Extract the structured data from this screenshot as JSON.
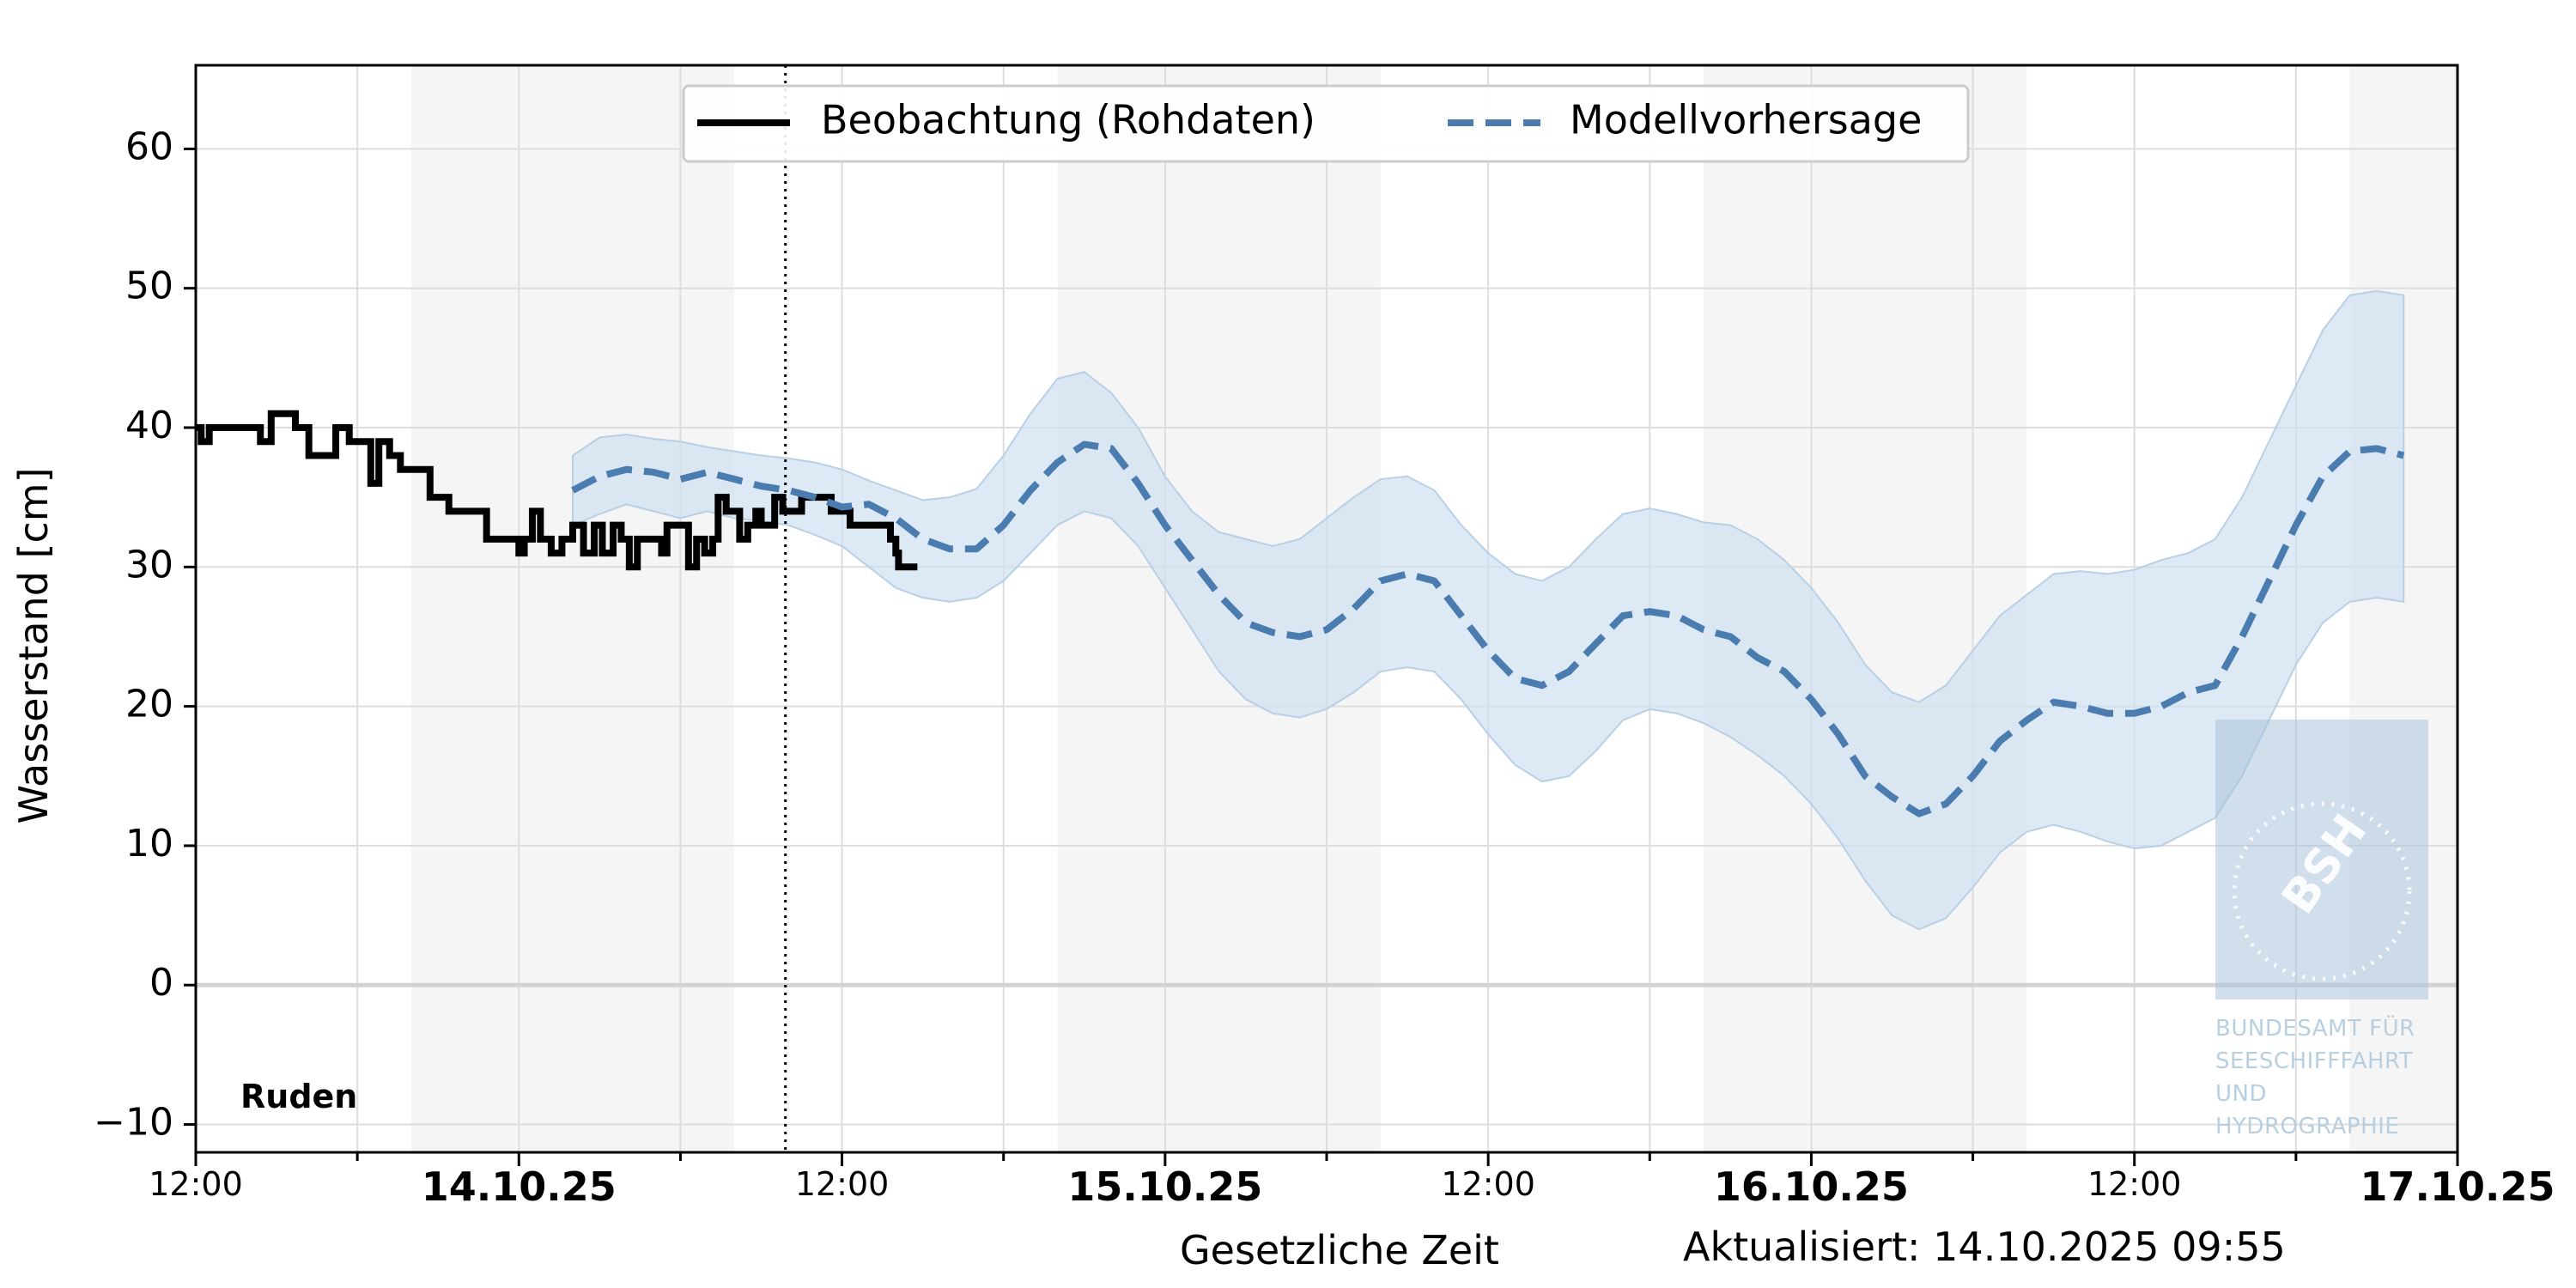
{
  "chart_data": {
    "type": "line",
    "station": "Ruden",
    "ylabel": "Wasserstand [cm]",
    "xlabel": "Gesetzliche Zeit",
    "updated": "Aktualisiert: 14.10.2025 09:55",
    "ylim": [
      -12,
      66
    ],
    "yticks": [
      -10,
      0,
      10,
      20,
      30,
      40,
      50,
      60
    ],
    "x_range_hours": [
      -12,
      72
    ],
    "x_origin": "14.10.25 00:00",
    "xticks_minor": [
      {
        "h": -12,
        "label": "12:00"
      },
      {
        "h": 12,
        "label": "12:00"
      },
      {
        "h": 36,
        "label": "12:00"
      },
      {
        "h": 60,
        "label": "12:00"
      }
    ],
    "xticks_major": [
      {
        "h": 0,
        "label": "14.10.25"
      },
      {
        "h": 24,
        "label": "15.10.25"
      },
      {
        "h": 48,
        "label": "16.10.25"
      },
      {
        "h": 72,
        "label": "17.10.25"
      }
    ],
    "night_bands_hours": [
      [
        -4,
        8
      ],
      [
        20,
        32
      ],
      [
        44,
        56
      ],
      [
        68,
        72
      ]
    ],
    "now_hours": 9.9,
    "grid": true,
    "legend_position": "top-center",
    "series": [
      {
        "name": "Beobachtung (Rohdaten)",
        "color": "#000000",
        "style": "solid-step",
        "points": [
          [
            -12,
            40
          ],
          [
            -11.8,
            39
          ],
          [
            -11.5,
            40
          ],
          [
            -10,
            40
          ],
          [
            -9.6,
            39
          ],
          [
            -9.2,
            41
          ],
          [
            -8.6,
            41
          ],
          [
            -8.3,
            40
          ],
          [
            -7.8,
            38
          ],
          [
            -7.2,
            38
          ],
          [
            -6.8,
            40
          ],
          [
            -6.3,
            39
          ],
          [
            -5.8,
            39
          ],
          [
            -5.5,
            36
          ],
          [
            -5.2,
            39
          ],
          [
            -4.8,
            38
          ],
          [
            -4.4,
            37
          ],
          [
            -3.6,
            37
          ],
          [
            -3.3,
            35
          ],
          [
            -2.6,
            34
          ],
          [
            -1.5,
            34
          ],
          [
            -1.2,
            32
          ],
          [
            -0.3,
            32
          ],
          [
            0,
            31
          ],
          [
            0.2,
            32
          ],
          [
            0.5,
            34
          ],
          [
            0.8,
            32
          ],
          [
            1.2,
            31
          ],
          [
            1.6,
            32
          ],
          [
            2,
            33
          ],
          [
            2.4,
            31
          ],
          [
            2.8,
            33
          ],
          [
            3.1,
            31
          ],
          [
            3.5,
            33
          ],
          [
            3.8,
            32
          ],
          [
            4.1,
            30
          ],
          [
            4.4,
            32
          ],
          [
            5,
            32
          ],
          [
            5.3,
            31
          ],
          [
            5.5,
            33
          ],
          [
            6.1,
            33
          ],
          [
            6.3,
            30
          ],
          [
            6.6,
            32
          ],
          [
            6.9,
            31
          ],
          [
            7.2,
            32
          ],
          [
            7.4,
            35
          ],
          [
            7.7,
            34
          ],
          [
            8.1,
            34
          ],
          [
            8.2,
            32
          ],
          [
            8.5,
            33
          ],
          [
            8.8,
            34
          ],
          [
            9,
            33
          ],
          [
            9.5,
            35
          ],
          [
            9.8,
            34
          ],
          [
            10.2,
            34
          ],
          [
            10.5,
            35
          ],
          [
            11.2,
            35
          ],
          [
            11.6,
            34
          ],
          [
            12.3,
            33
          ],
          [
            13.6,
            33
          ],
          [
            13.8,
            32
          ],
          [
            14,
            31
          ],
          [
            14.1,
            30
          ],
          [
            14.8,
            30
          ]
        ]
      },
      {
        "name": "Modellvorhersage",
        "color": "#4a7cb0",
        "style": "dashed",
        "band_color": "#cfe0ef",
        "points": [
          [
            2,
            35.5
          ],
          [
            3,
            36.5
          ],
          [
            4,
            37
          ],
          [
            5,
            36.8
          ],
          [
            6,
            36.3
          ],
          [
            7,
            36.8
          ],
          [
            8,
            36.3
          ],
          [
            9,
            35.8
          ],
          [
            10,
            35.5
          ],
          [
            11,
            35
          ],
          [
            12,
            34.3
          ],
          [
            13,
            34.5
          ],
          [
            14,
            33.5
          ],
          [
            15,
            32
          ],
          [
            16,
            31.3
          ],
          [
            17,
            31.3
          ],
          [
            18,
            33
          ],
          [
            19,
            35.5
          ],
          [
            20,
            37.5
          ],
          [
            21,
            38.8
          ],
          [
            22,
            38.5
          ],
          [
            23,
            36
          ],
          [
            24,
            33
          ],
          [
            25,
            30.5
          ],
          [
            26,
            28
          ],
          [
            27,
            26
          ],
          [
            28,
            25.3
          ],
          [
            29,
            25
          ],
          [
            30,
            25.5
          ],
          [
            31,
            27
          ],
          [
            32,
            29
          ],
          [
            33,
            29.5
          ],
          [
            34,
            29
          ],
          [
            35,
            26.5
          ],
          [
            36,
            24
          ],
          [
            37,
            22
          ],
          [
            38,
            21.5
          ],
          [
            39,
            22.5
          ],
          [
            40,
            24.5
          ],
          [
            41,
            26.5
          ],
          [
            42,
            26.8
          ],
          [
            43,
            26.5
          ],
          [
            44,
            25.5
          ],
          [
            45,
            25
          ],
          [
            46,
            23.5
          ],
          [
            47,
            22.5
          ],
          [
            48,
            20.5
          ],
          [
            49,
            18
          ],
          [
            50,
            15
          ],
          [
            51,
            13.5
          ],
          [
            52,
            12.3
          ],
          [
            53,
            13
          ],
          [
            54,
            15
          ],
          [
            55,
            17.5
          ],
          [
            56,
            19
          ],
          [
            57,
            20.3
          ],
          [
            58,
            20
          ],
          [
            59,
            19.5
          ],
          [
            60,
            19.5
          ],
          [
            61,
            20
          ],
          [
            62,
            21
          ],
          [
            63,
            21.5
          ],
          [
            64,
            25
          ],
          [
            65,
            29
          ],
          [
            66,
            33
          ],
          [
            67,
            36.5
          ],
          [
            68,
            38.3
          ],
          [
            69,
            38.5
          ],
          [
            70,
            38
          ]
        ],
        "band_upper": [
          [
            2,
            38
          ],
          [
            3,
            39.3
          ],
          [
            4,
            39.5
          ],
          [
            5,
            39.2
          ],
          [
            6,
            39
          ],
          [
            7,
            38.6
          ],
          [
            8,
            38.3
          ],
          [
            9,
            38
          ],
          [
            10,
            37.8
          ],
          [
            11,
            37.5
          ],
          [
            12,
            37
          ],
          [
            13,
            36.2
          ],
          [
            14,
            35.5
          ],
          [
            15,
            34.8
          ],
          [
            16,
            35
          ],
          [
            17,
            35.6
          ],
          [
            18,
            38
          ],
          [
            19,
            41
          ],
          [
            20,
            43.5
          ],
          [
            21,
            44
          ],
          [
            22,
            42.5
          ],
          [
            23,
            40
          ],
          [
            24,
            36.5
          ],
          [
            25,
            34
          ],
          [
            26,
            32.5
          ],
          [
            27,
            32
          ],
          [
            28,
            31.5
          ],
          [
            29,
            32
          ],
          [
            30,
            33.5
          ],
          [
            31,
            35
          ],
          [
            32,
            36.3
          ],
          [
            33,
            36.5
          ],
          [
            34,
            35.5
          ],
          [
            35,
            33
          ],
          [
            36,
            31
          ],
          [
            37,
            29.5
          ],
          [
            38,
            29
          ],
          [
            39,
            30
          ],
          [
            40,
            32
          ],
          [
            41,
            33.8
          ],
          [
            42,
            34.2
          ],
          [
            43,
            33.8
          ],
          [
            44,
            33.2
          ],
          [
            45,
            33
          ],
          [
            46,
            32
          ],
          [
            47,
            30.5
          ],
          [
            48,
            28.5
          ],
          [
            49,
            26
          ],
          [
            50,
            23
          ],
          [
            51,
            21
          ],
          [
            52,
            20.3
          ],
          [
            53,
            21.5
          ],
          [
            54,
            24
          ],
          [
            55,
            26.5
          ],
          [
            56,
            28
          ],
          [
            57,
            29.5
          ],
          [
            58,
            29.7
          ],
          [
            59,
            29.5
          ],
          [
            60,
            29.8
          ],
          [
            61,
            30.5
          ],
          [
            62,
            31
          ],
          [
            63,
            32
          ],
          [
            64,
            35
          ],
          [
            65,
            39
          ],
          [
            66,
            43
          ],
          [
            67,
            47
          ],
          [
            68,
            49.5
          ],
          [
            69,
            49.8
          ],
          [
            70,
            49.5
          ]
        ],
        "band_lower": [
          [
            2,
            33
          ],
          [
            3,
            33.8
          ],
          [
            4,
            34.5
          ],
          [
            5,
            34
          ],
          [
            6,
            33.5
          ],
          [
            7,
            34
          ],
          [
            8,
            33.5
          ],
          [
            9,
            33.3
          ],
          [
            10,
            33
          ],
          [
            11,
            32.3
          ],
          [
            12,
            31.5
          ],
          [
            13,
            30
          ],
          [
            14,
            28.5
          ],
          [
            15,
            27.8
          ],
          [
            16,
            27.5
          ],
          [
            17,
            27.8
          ],
          [
            18,
            29
          ],
          [
            19,
            31
          ],
          [
            20,
            33
          ],
          [
            21,
            34
          ],
          [
            22,
            33.5
          ],
          [
            23,
            31.5
          ],
          [
            24,
            28.5
          ],
          [
            25,
            25.5
          ],
          [
            26,
            22.5
          ],
          [
            27,
            20.5
          ],
          [
            28,
            19.5
          ],
          [
            29,
            19.2
          ],
          [
            30,
            19.8
          ],
          [
            31,
            21
          ],
          [
            32,
            22.5
          ],
          [
            33,
            22.8
          ],
          [
            34,
            22.5
          ],
          [
            35,
            20.5
          ],
          [
            36,
            18
          ],
          [
            37,
            15.8
          ],
          [
            38,
            14.6
          ],
          [
            39,
            15
          ],
          [
            40,
            16.8
          ],
          [
            41,
            19
          ],
          [
            42,
            19.8
          ],
          [
            43,
            19.5
          ],
          [
            44,
            18.8
          ],
          [
            45,
            17.8
          ],
          [
            46,
            16.5
          ],
          [
            47,
            15
          ],
          [
            48,
            13
          ],
          [
            49,
            10.5
          ],
          [
            50,
            7.5
          ],
          [
            51,
            5
          ],
          [
            52,
            4
          ],
          [
            53,
            4.8
          ],
          [
            54,
            7
          ],
          [
            55,
            9.5
          ],
          [
            56,
            11
          ],
          [
            57,
            11.5
          ],
          [
            58,
            11
          ],
          [
            59,
            10.3
          ],
          [
            60,
            9.8
          ],
          [
            61,
            10
          ],
          [
            62,
            11
          ],
          [
            63,
            12
          ],
          [
            64,
            15
          ],
          [
            65,
            19
          ],
          [
            66,
            23
          ],
          [
            67,
            26
          ],
          [
            68,
            27.5
          ],
          [
            69,
            27.8
          ],
          [
            70,
            27.5
          ]
        ]
      }
    ]
  },
  "watermark": {
    "logo_text": "BSH",
    "lines": [
      "BUNDESAMT FÜR",
      "SEESCHIFFFAHRT",
      "UND",
      "HYDROGRAPHIE"
    ]
  },
  "colors": {
    "night_band": "#f5f5f5",
    "grid": "#dddddd",
    "zero_line": "#d3d3d3",
    "band": "#cfe0ef",
    "forecast": "#4a7cb0",
    "observation": "#000000",
    "watermark": "#a9c5da"
  }
}
